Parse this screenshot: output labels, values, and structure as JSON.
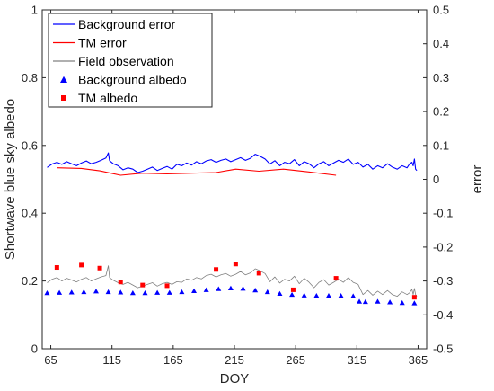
{
  "chart_data": {
    "type": "line",
    "xlabel": "DOY",
    "ylabel_left": "Shortwave blue sky albedo",
    "ylabel_right": "error",
    "xlim": [
      58,
      372
    ],
    "xticks": [
      65,
      115,
      165,
      215,
      265,
      315,
      365
    ],
    "ylim_left": [
      0,
      1
    ],
    "yticks_left": [
      0,
      0.2,
      0.4,
      0.6,
      0.8,
      1
    ],
    "yticklabels_left": [
      "0",
      "0.2",
      "0.4",
      "0.6",
      "0.8",
      "1"
    ],
    "ylim_right": [
      -0.5,
      0.5
    ],
    "yticks_right": [
      -0.5,
      -0.4,
      -0.3,
      -0.2,
      -0.1,
      0,
      0.1,
      0.2,
      0.3,
      0.4,
      0.5
    ],
    "yticklabels_right": [
      "-0.5",
      "-0.4",
      "-0.3",
      "-0.2",
      "-0.1",
      "0",
      "0.1",
      "0.2",
      "0.3",
      "0.4",
      "0.5"
    ],
    "grid": false,
    "legend_position": "top-left",
    "series": [
      {
        "name": "Background error",
        "kind": "line",
        "axis": "right",
        "color": "#0000FF",
        "x": [
          62,
          66,
          70,
          74,
          78,
          82,
          86,
          90,
          94,
          98,
          102,
          106,
          110,
          112,
          113,
          116,
          120,
          124,
          128,
          132,
          136,
          140,
          144,
          148,
          152,
          156,
          160,
          164,
          168,
          172,
          176,
          180,
          184,
          188,
          192,
          196,
          200,
          204,
          208,
          212,
          216,
          220,
          224,
          228,
          232,
          236,
          240,
          244,
          248,
          252,
          256,
          260,
          264,
          268,
          272,
          276,
          280,
          284,
          288,
          292,
          296,
          300,
          304,
          308,
          312,
          316,
          320,
          324,
          328,
          332,
          336,
          340,
          344,
          348,
          352,
          356,
          358,
          360,
          361,
          362,
          363,
          364
        ],
        "y": [
          0.035,
          0.045,
          0.05,
          0.044,
          0.052,
          0.046,
          0.04,
          0.048,
          0.054,
          0.046,
          0.05,
          0.056,
          0.063,
          0.078,
          0.055,
          0.046,
          0.04,
          0.028,
          0.034,
          0.03,
          0.02,
          0.024,
          0.03,
          0.036,
          0.026,
          0.032,
          0.038,
          0.03,
          0.044,
          0.04,
          0.048,
          0.042,
          0.052,
          0.046,
          0.054,
          0.058,
          0.05,
          0.056,
          0.06,
          0.052,
          0.058,
          0.064,
          0.056,
          0.062,
          0.074,
          0.068,
          0.06,
          0.045,
          0.055,
          0.04,
          0.05,
          0.046,
          0.058,
          0.04,
          0.052,
          0.046,
          0.034,
          0.046,
          0.052,
          0.04,
          0.048,
          0.056,
          0.05,
          0.06,
          0.044,
          0.05,
          0.036,
          0.044,
          0.03,
          0.04,
          0.034,
          0.046,
          0.036,
          0.03,
          0.04,
          0.034,
          0.045,
          0.05,
          0.04,
          0.06,
          0.03,
          0.026
        ]
      },
      {
        "name": "TM error",
        "kind": "line",
        "axis": "right",
        "color": "#FF0000",
        "x": [
          70,
          90,
          105,
          122,
          140,
          160,
          180,
          200,
          216,
          235,
          255,
          275,
          298
        ],
        "y": [
          0.034,
          0.032,
          0.025,
          0.012,
          0.018,
          0.016,
          0.018,
          0.02,
          0.03,
          0.024,
          0.03,
          0.022,
          0.012
        ]
      },
      {
        "name": "Field observation",
        "kind": "line",
        "axis": "left",
        "color": "#808080",
        "x": [
          62,
          66,
          70,
          74,
          78,
          82,
          86,
          90,
          94,
          98,
          102,
          106,
          110,
          112,
          113,
          116,
          120,
          124,
          128,
          132,
          136,
          140,
          144,
          148,
          152,
          156,
          160,
          164,
          168,
          172,
          176,
          180,
          184,
          188,
          192,
          196,
          200,
          204,
          208,
          212,
          216,
          220,
          224,
          228,
          232,
          236,
          240,
          244,
          248,
          252,
          256,
          260,
          264,
          268,
          272,
          276,
          280,
          284,
          288,
          292,
          296,
          300,
          304,
          308,
          312,
          316,
          320,
          324,
          328,
          332,
          336,
          340,
          344,
          348,
          352,
          356,
          358,
          360,
          361,
          362,
          363,
          364
        ],
        "y": [
          0.195,
          0.205,
          0.21,
          0.2,
          0.208,
          0.203,
          0.197,
          0.205,
          0.21,
          0.2,
          0.206,
          0.212,
          0.216,
          0.245,
          0.21,
          0.202,
          0.195,
          0.19,
          0.196,
          0.188,
          0.18,
          0.185,
          0.19,
          0.195,
          0.185,
          0.192,
          0.196,
          0.19,
          0.198,
          0.196,
          0.206,
          0.202,
          0.21,
          0.206,
          0.216,
          0.22,
          0.212,
          0.218,
          0.222,
          0.214,
          0.22,
          0.228,
          0.218,
          0.224,
          0.236,
          0.23,
          0.222,
          0.198,
          0.212,
          0.194,
          0.205,
          0.2,
          0.214,
          0.192,
          0.208,
          0.196,
          0.18,
          0.196,
          0.204,
          0.188,
          0.196,
          0.205,
          0.196,
          0.21,
          0.196,
          0.19,
          0.16,
          0.172,
          0.158,
          0.17,
          0.16,
          0.172,
          0.16,
          0.155,
          0.168,
          0.16,
          0.165,
          0.175,
          0.16,
          0.178,
          0.16,
          0.155
        ]
      },
      {
        "name": "Background albedo",
        "kind": "markers",
        "marker": "triangle",
        "axis": "left",
        "color": "#0000FF",
        "x": [
          62,
          72,
          82,
          92,
          102,
          112,
          122,
          132,
          142,
          152,
          162,
          172,
          182,
          192,
          202,
          212,
          222,
          232,
          242,
          252,
          262,
          272,
          282,
          292,
          302,
          312,
          317,
          322,
          332,
          342,
          352,
          362
        ],
        "y": [
          0.165,
          0.166,
          0.167,
          0.168,
          0.17,
          0.168,
          0.167,
          0.165,
          0.165,
          0.166,
          0.166,
          0.168,
          0.171,
          0.174,
          0.177,
          0.179,
          0.178,
          0.173,
          0.168,
          0.163,
          0.16,
          0.158,
          0.157,
          0.157,
          0.157,
          0.156,
          0.14,
          0.139,
          0.14,
          0.138,
          0.136,
          0.135
        ]
      },
      {
        "name": "TM albedo",
        "kind": "markers",
        "marker": "square",
        "axis": "left",
        "color": "#FF0000",
        "x": [
          70,
          90,
          105,
          122,
          140,
          160,
          200,
          216,
          235,
          263,
          298,
          362
        ],
        "y": [
          0.24,
          0.247,
          0.238,
          0.197,
          0.188,
          0.186,
          0.234,
          0.25,
          0.223,
          0.174,
          0.208,
          0.152
        ]
      }
    ]
  }
}
